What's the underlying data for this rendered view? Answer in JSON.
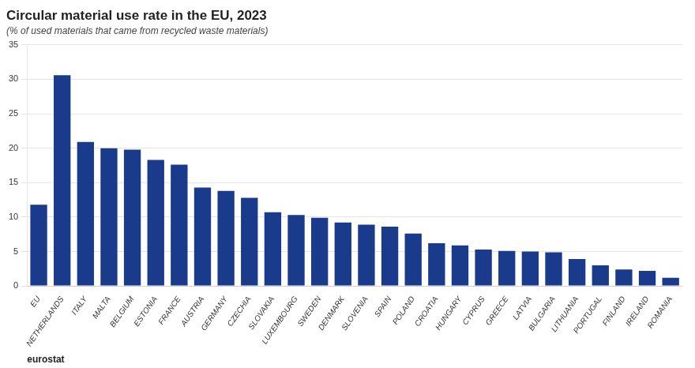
{
  "chart_data": {
    "type": "bar",
    "title": "Circular material use rate in the EU, 2023",
    "subtitle": "(% of used materials that came from recycled waste materials)",
    "annotations": [
      "eurostat"
    ],
    "categories": [
      "EU",
      "NETHERLANDS",
      "ITALY",
      "MALTA",
      "BELGIUM",
      "ESTONIA",
      "FRANCE",
      "AUSTRIA",
      "GERMANY",
      "CZECHIA",
      "SLOVAKIA",
      "LUXEMBOURG",
      "SWEDEN",
      "DENMARK",
      "SLOVENIA",
      "SPAIN",
      "POLAND",
      "CROATIA",
      "HUNGARY",
      "CYPRUS",
      "GREECE",
      "LATVIA",
      "BULGARIA",
      "LITHUANIA",
      "PORTUGAL",
      "FINLAND",
      "IRELAND",
      "ROMANIA"
    ],
    "values": [
      11.8,
      30.6,
      20.9,
      20.0,
      19.8,
      18.3,
      17.6,
      14.3,
      13.8,
      12.8,
      10.7,
      10.3,
      9.9,
      9.2,
      8.9,
      8.6,
      7.6,
      6.2,
      5.9,
      5.3,
      5.1,
      5.0,
      4.9,
      3.9,
      3.0,
      2.4,
      2.2,
      1.2
    ],
    "color": "#1a3a8c",
    "ylim": [
      0,
      35
    ],
    "yticks": [
      0,
      5,
      10,
      15,
      20,
      25,
      30,
      35
    ],
    "grid": true
  }
}
